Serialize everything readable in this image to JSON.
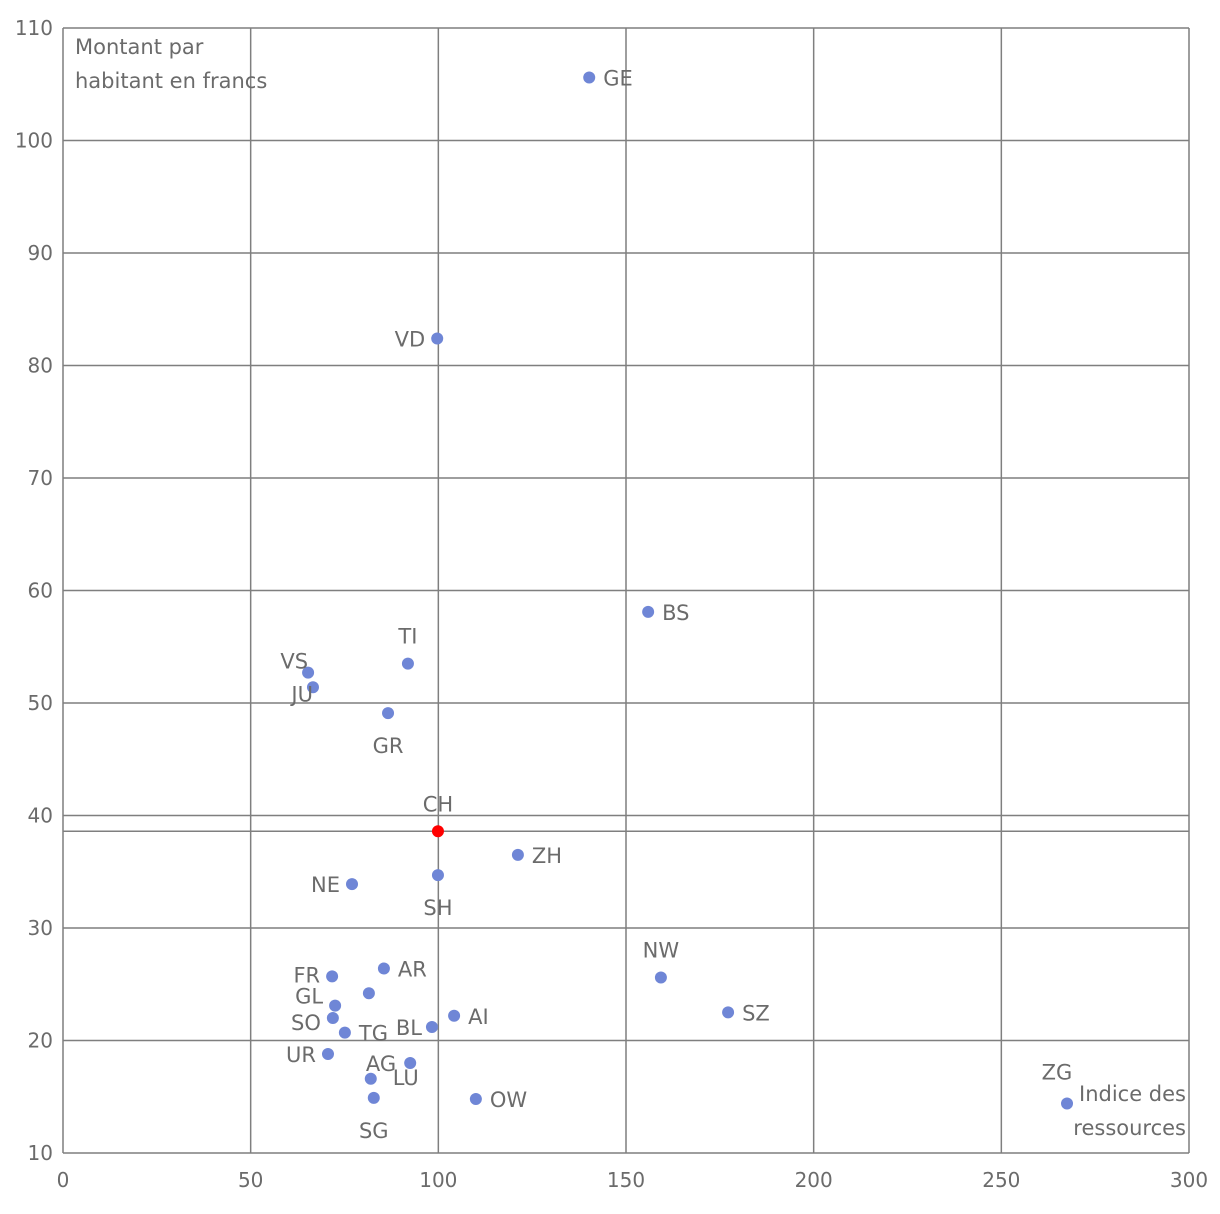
{
  "chart_data": {
    "type": "scatter",
    "ylabel": "Montant par habitant en francs",
    "xlabel": "Indice des ressources",
    "xlim": [
      0,
      300
    ],
    "ylim": [
      10,
      110
    ],
    "xticks": [
      0,
      50,
      100,
      150,
      200,
      250,
      300
    ],
    "yticks": [
      10,
      20,
      30,
      40,
      50,
      60,
      70,
      80,
      90,
      100,
      110
    ],
    "grid": true,
    "reference_line_y": 38.6,
    "colors": {
      "point": "#6f86d6",
      "highlight": "#ff0000",
      "grid": "#7f7f7f",
      "text": "#6b6b6b"
    },
    "points": [
      {
        "label": "GE",
        "x": 140.2,
        "y": 105.6,
        "pos": "right"
      },
      {
        "label": "VD",
        "x": 99.7,
        "y": 82.4,
        "pos": "left"
      },
      {
        "label": "BS",
        "x": 155.9,
        "y": 58.1,
        "pos": "right"
      },
      {
        "label": "TI",
        "x": 91.9,
        "y": 53.5,
        "pos": "top"
      },
      {
        "label": "VS",
        "x": 65.3,
        "y": 52.7,
        "pos": "left"
      },
      {
        "label": "JU",
        "x": 66.6,
        "y": 51.4,
        "pos": "left"
      },
      {
        "label": "GR",
        "x": 86.6,
        "y": 49.1,
        "pos": "bottom"
      },
      {
        "label": "CH",
        "x": 99.9,
        "y": 38.6,
        "pos": "top",
        "highlight": true
      },
      {
        "label": "ZH",
        "x": 121.2,
        "y": 36.5,
        "pos": "right"
      },
      {
        "label": "NE",
        "x": 77.0,
        "y": 33.9,
        "pos": "left"
      },
      {
        "label": "SH",
        "x": 99.9,
        "y": 34.7,
        "pos": "bottom"
      },
      {
        "label": "NW",
        "x": 159.3,
        "y": 25.6,
        "pos": "top"
      },
      {
        "label": "SZ",
        "x": 177.2,
        "y": 22.5,
        "pos": "right"
      },
      {
        "label": "FR",
        "x": 71.7,
        "y": 25.7,
        "pos": "left"
      },
      {
        "label": "AR",
        "x": 85.5,
        "y": 26.4,
        "pos": "right"
      },
      {
        "label": "",
        "x": 81.5,
        "y": 24.2,
        "pos": "right"
      },
      {
        "label": "GL",
        "x": 72.5,
        "y": 23.1,
        "pos": "left"
      },
      {
        "label": "SO",
        "x": 71.9,
        "y": 22.0,
        "pos": "left"
      },
      {
        "label": "TG",
        "x": 75.1,
        "y": 20.7,
        "pos": "right"
      },
      {
        "label": "BL",
        "x": 98.3,
        "y": 21.2,
        "pos": "left"
      },
      {
        "label": "AI",
        "x": 104.2,
        "y": 22.2,
        "pos": "right"
      },
      {
        "label": "UR",
        "x": 70.6,
        "y": 18.8,
        "pos": "left"
      },
      {
        "label": "AG",
        "x": 92.5,
        "y": 18.0,
        "pos": "topleft"
      },
      {
        "label": "LU",
        "x": 82.0,
        "y": 16.6,
        "pos": "bottomright"
      },
      {
        "label": "SG",
        "x": 82.8,
        "y": 14.9,
        "pos": "bottom"
      },
      {
        "label": "OW",
        "x": 110.0,
        "y": 14.8,
        "pos": "right"
      },
      {
        "label": "ZG",
        "x": 267.5,
        "y": 14.4,
        "pos": "top"
      }
    ]
  }
}
